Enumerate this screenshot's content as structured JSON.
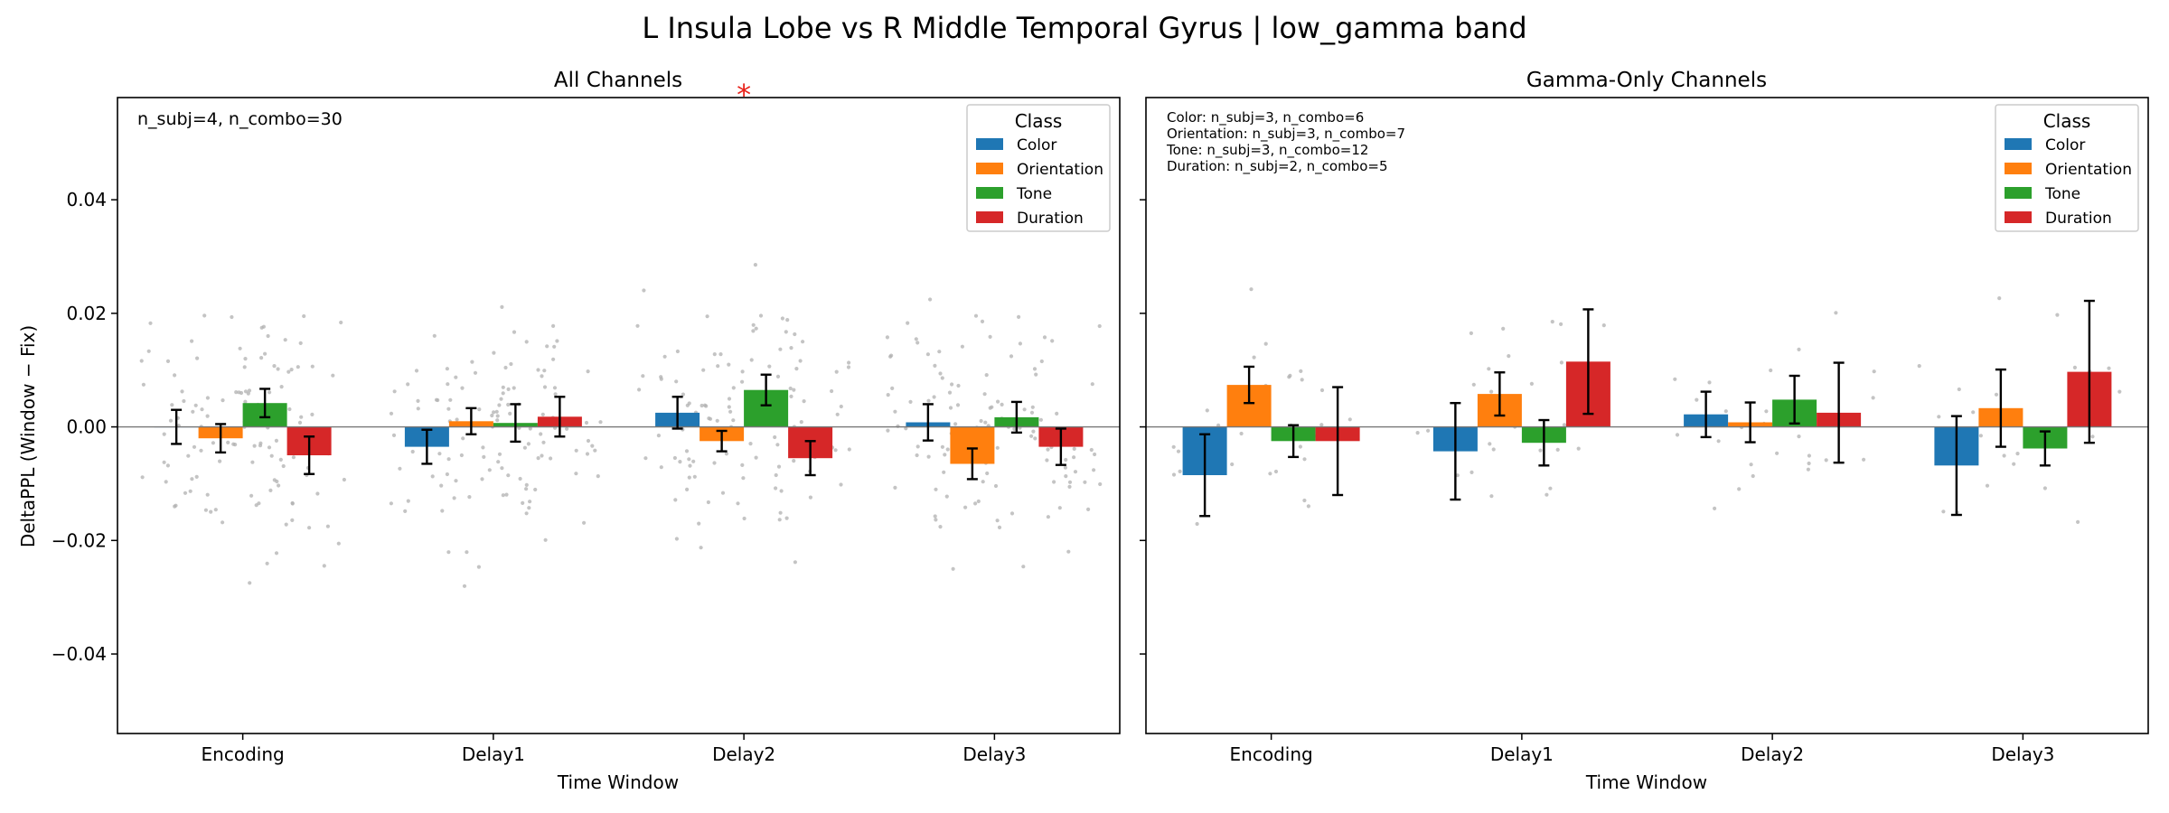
{
  "figure": {
    "suptitle": "L Insula Lobe vs R Middle Temporal Gyrus  |  low_gamma band"
  },
  "legend": {
    "title": "Class",
    "items": [
      "Color",
      "Orientation",
      "Tone",
      "Duration"
    ]
  },
  "colors": {
    "Color": "#1f77b4",
    "Orientation": "#ff7f0e",
    "Tone": "#2ca02c",
    "Duration": "#d62728",
    "points": "#b0b0b0",
    "significance": "#e8221a"
  },
  "chart_data": [
    {
      "type": "bar",
      "title": "All Channels",
      "xlabel": "Time Window",
      "ylabel": "DeltaPPL (Window − Fix)",
      "ylim": [
        -0.054,
        0.058
      ],
      "yticks": [
        -0.04,
        -0.02,
        0.0,
        0.02,
        0.04
      ],
      "ytick_labels": [
        "−0.04",
        "−0.02",
        "0.00",
        "0.02",
        "0.04"
      ],
      "categories": [
        "Encoding",
        "Delay1",
        "Delay2",
        "Delay3"
      ],
      "annotation": "n_subj=4, n_combo=30",
      "significance": [
        {
          "category": "Delay2",
          "marker": "*"
        }
      ],
      "series": [
        {
          "name": "Color",
          "values": [
            0.0,
            -0.0035,
            0.0025,
            0.0008
          ],
          "err": [
            0.003,
            0.003,
            0.0028,
            0.0032
          ]
        },
        {
          "name": "Orientation",
          "values": [
            -0.002,
            0.001,
            -0.0025,
            -0.0065
          ],
          "err": [
            0.0025,
            0.0023,
            0.0018,
            0.0027
          ]
        },
        {
          "name": "Tone",
          "values": [
            0.0042,
            0.0007,
            0.0065,
            0.0017
          ],
          "err": [
            0.0025,
            0.0033,
            0.0027,
            0.0027
          ]
        },
        {
          "name": "Duration",
          "values": [
            -0.005,
            0.0018,
            -0.0055,
            -0.0035
          ],
          "err": [
            0.0033,
            0.0035,
            0.003,
            0.0032
          ]
        }
      ]
    },
    {
      "type": "bar",
      "title": "Gamma-Only Channels",
      "xlabel": "Time Window",
      "ylabel": "",
      "ylim": [
        -0.054,
        0.058
      ],
      "yticks": [
        -0.04,
        -0.02,
        0.0,
        0.02,
        0.04
      ],
      "categories": [
        "Encoding",
        "Delay1",
        "Delay2",
        "Delay3"
      ],
      "annotation_lines": [
        "Color: n_subj=3, n_combo=6",
        "Orientation: n_subj=3, n_combo=7",
        "Tone: n_subj=3, n_combo=12",
        "Duration: n_subj=2, n_combo=5"
      ],
      "series": [
        {
          "name": "Color",
          "values": [
            -0.0085,
            -0.0043,
            0.0022,
            -0.0068
          ],
          "err": [
            0.0072,
            0.0085,
            0.004,
            0.0087
          ]
        },
        {
          "name": "Orientation",
          "values": [
            0.0074,
            0.0058,
            0.0008,
            0.0033
          ],
          "err": [
            0.0032,
            0.0038,
            0.0035,
            0.0068
          ]
        },
        {
          "name": "Tone",
          "values": [
            -0.0025,
            -0.0028,
            0.0048,
            -0.0038
          ],
          "err": [
            0.0028,
            0.004,
            0.0042,
            0.003
          ]
        },
        {
          "name": "Duration",
          "values": [
            -0.0025,
            0.0115,
            0.0025,
            0.0097
          ],
          "err": [
            0.0095,
            0.0092,
            0.0088,
            0.0125
          ]
        }
      ]
    }
  ]
}
